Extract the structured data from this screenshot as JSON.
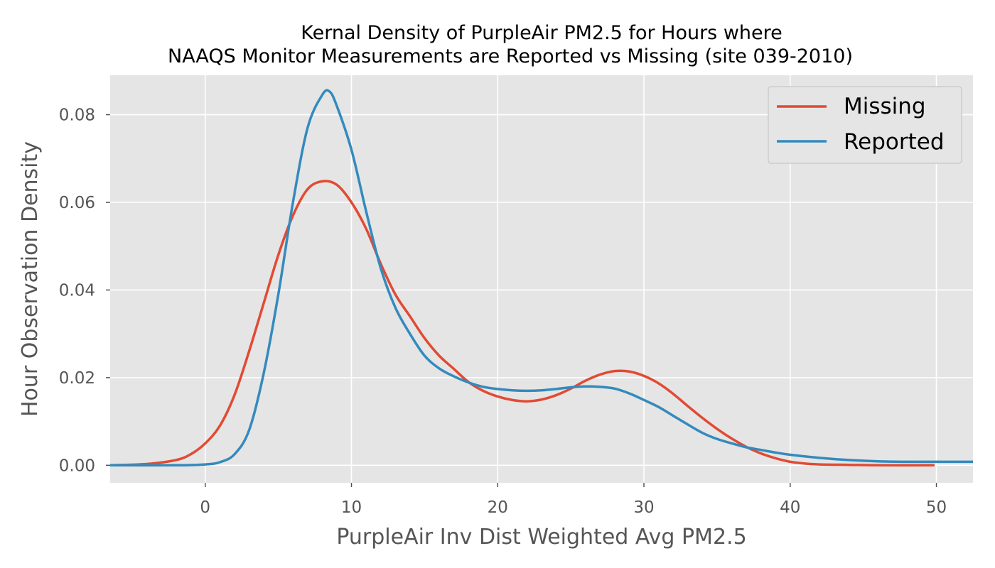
{
  "chart_data": {
    "type": "line",
    "title_line1": "Kernal Density of PurpleAir PM2.5 for Hours where",
    "title_line2": "NAAQS Monitor Measurements are Reported vs Missing (site 039-2010)",
    "xlabel": "PurpleAir Inv Dist Weighted Avg PM2.5",
    "ylabel": "Hour Observation Density",
    "xlim": [
      -6.5,
      52.5
    ],
    "ylim": [
      -0.004,
      0.089
    ],
    "xticks": [
      0,
      10,
      20,
      30,
      40,
      50
    ],
    "xtick_labels": [
      "0",
      "10",
      "20",
      "30",
      "40",
      "50"
    ],
    "yticks": [
      0.0,
      0.02,
      0.04,
      0.06,
      0.08
    ],
    "ytick_labels": [
      "0.00",
      "0.02",
      "0.04",
      "0.06",
      "0.08"
    ],
    "grid": true,
    "legend_position": "top-right",
    "background_color": "#e5e5e5",
    "series": [
      {
        "name": "Missing",
        "color": "#e24a33",
        "points": [
          [
            -6.5,
            0.0
          ],
          [
            -4,
            0.0003
          ],
          [
            -2,
            0.0012
          ],
          [
            -1,
            0.0025
          ],
          [
            0,
            0.005
          ],
          [
            1,
            0.009
          ],
          [
            2,
            0.016
          ],
          [
            3,
            0.026
          ],
          [
            4,
            0.037
          ],
          [
            5,
            0.048
          ],
          [
            6,
            0.057
          ],
          [
            7,
            0.063
          ],
          [
            8,
            0.0648
          ],
          [
            9,
            0.064
          ],
          [
            10,
            0.06
          ],
          [
            11,
            0.054
          ],
          [
            12,
            0.046
          ],
          [
            13,
            0.039
          ],
          [
            14,
            0.034
          ],
          [
            15,
            0.029
          ],
          [
            16,
            0.025
          ],
          [
            17,
            0.022
          ],
          [
            18,
            0.019
          ],
          [
            19,
            0.017
          ],
          [
            20,
            0.0157
          ],
          [
            21,
            0.0149
          ],
          [
            22,
            0.0146
          ],
          [
            23,
            0.015
          ],
          [
            24,
            0.016
          ],
          [
            25,
            0.0175
          ],
          [
            26,
            0.0193
          ],
          [
            27,
            0.0207
          ],
          [
            28,
            0.0215
          ],
          [
            29,
            0.0214
          ],
          [
            30,
            0.0204
          ],
          [
            31,
            0.0187
          ],
          [
            32,
            0.0163
          ],
          [
            33,
            0.0135
          ],
          [
            34,
            0.0108
          ],
          [
            35,
            0.0083
          ],
          [
            36,
            0.0061
          ],
          [
            37,
            0.0042
          ],
          [
            38,
            0.0027
          ],
          [
            39,
            0.0016
          ],
          [
            40,
            0.0008
          ],
          [
            41,
            0.0004
          ],
          [
            42,
            0.0002
          ],
          [
            44,
            0.0001
          ],
          [
            46,
            0.0
          ],
          [
            49.8,
            0.0
          ]
        ]
      },
      {
        "name": "Reported",
        "color": "#348abd",
        "points": [
          [
            -6.5,
            0.0
          ],
          [
            -2,
            0.0
          ],
          [
            0,
            0.0002
          ],
          [
            1,
            0.0007
          ],
          [
            2,
            0.0025
          ],
          [
            3,
            0.008
          ],
          [
            4,
            0.021
          ],
          [
            5,
            0.039
          ],
          [
            6,
            0.06
          ],
          [
            7,
            0.077
          ],
          [
            8,
            0.0845
          ],
          [
            8.5,
            0.0853
          ],
          [
            9,
            0.082
          ],
          [
            10,
            0.072
          ],
          [
            11,
            0.058
          ],
          [
            12,
            0.045
          ],
          [
            13,
            0.036
          ],
          [
            14,
            0.03
          ],
          [
            15,
            0.025
          ],
          [
            16,
            0.0221
          ],
          [
            17,
            0.0203
          ],
          [
            18,
            0.0189
          ],
          [
            19,
            0.0179
          ],
          [
            20,
            0.0174
          ],
          [
            21,
            0.0171
          ],
          [
            22,
            0.017
          ],
          [
            23,
            0.0171
          ],
          [
            24,
            0.0174
          ],
          [
            25,
            0.0178
          ],
          [
            26,
            0.018
          ],
          [
            27,
            0.0179
          ],
          [
            28,
            0.0175
          ],
          [
            29,
            0.0164
          ],
          [
            30,
            0.0149
          ],
          [
            31,
            0.0133
          ],
          [
            32,
            0.0113
          ],
          [
            33,
            0.0093
          ],
          [
            34,
            0.0074
          ],
          [
            35,
            0.006
          ],
          [
            36,
            0.005
          ],
          [
            37,
            0.0041
          ],
          [
            38,
            0.0035
          ],
          [
            39,
            0.0029
          ],
          [
            40,
            0.0024
          ],
          [
            42,
            0.0017
          ],
          [
            44,
            0.0012
          ],
          [
            46,
            0.0009
          ],
          [
            48,
            0.0008
          ],
          [
            50,
            0.0008
          ],
          [
            52.5,
            0.0008
          ]
        ]
      }
    ]
  }
}
